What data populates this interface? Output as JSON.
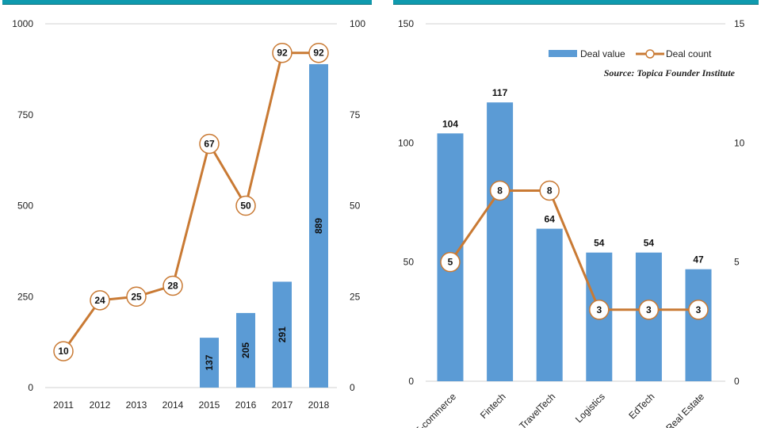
{
  "colors": {
    "header": "#0f9aae",
    "bar": "#5b9bd5",
    "line": "#c97a34",
    "grid": "#d0d0d0"
  },
  "chart_data": [
    {
      "type": "bar+line",
      "categories": [
        "2011",
        "2012",
        "2013",
        "2014",
        "2015",
        "2016",
        "2017",
        "2018"
      ],
      "series": [
        {
          "type": "bar",
          "axis": "left",
          "values": [
            null,
            null,
            null,
            null,
            137,
            205,
            291,
            889
          ]
        },
        {
          "type": "line",
          "axis": "right",
          "values": [
            10,
            24,
            25,
            28,
            67,
            50,
            92,
            92
          ]
        }
      ],
      "ylim_left": [
        0,
        1000
      ],
      "yticks_left": [
        "0",
        "250",
        "500",
        "750",
        "1000"
      ],
      "ylim_right": [
        0,
        100
      ],
      "yticks_right": [
        "0",
        "25",
        "50",
        "75",
        "100"
      ],
      "grid": "top line only"
    },
    {
      "type": "bar+line",
      "categories": [
        "E-commerce",
        "Fintech",
        "TravelTech",
        "Logistics",
        "EdTech",
        "Real Estate"
      ],
      "series": [
        {
          "type": "bar",
          "axis": "left",
          "name": "Deal value",
          "values": [
            104,
            117,
            64,
            54,
            54,
            47
          ]
        },
        {
          "type": "line",
          "axis": "right",
          "name": "Deal count",
          "values": [
            5,
            8,
            8,
            3,
            3,
            3
          ]
        }
      ],
      "ylim_left": [
        0,
        150
      ],
      "yticks_left": [
        "0",
        "50",
        "100",
        "150"
      ],
      "ylim_right": [
        0,
        15
      ],
      "yticks_right": [
        "0",
        "5",
        "10",
        "15"
      ],
      "legend": "top-right",
      "annotation": "Source: Topica Founder Institute",
      "grid": "top line only"
    }
  ]
}
